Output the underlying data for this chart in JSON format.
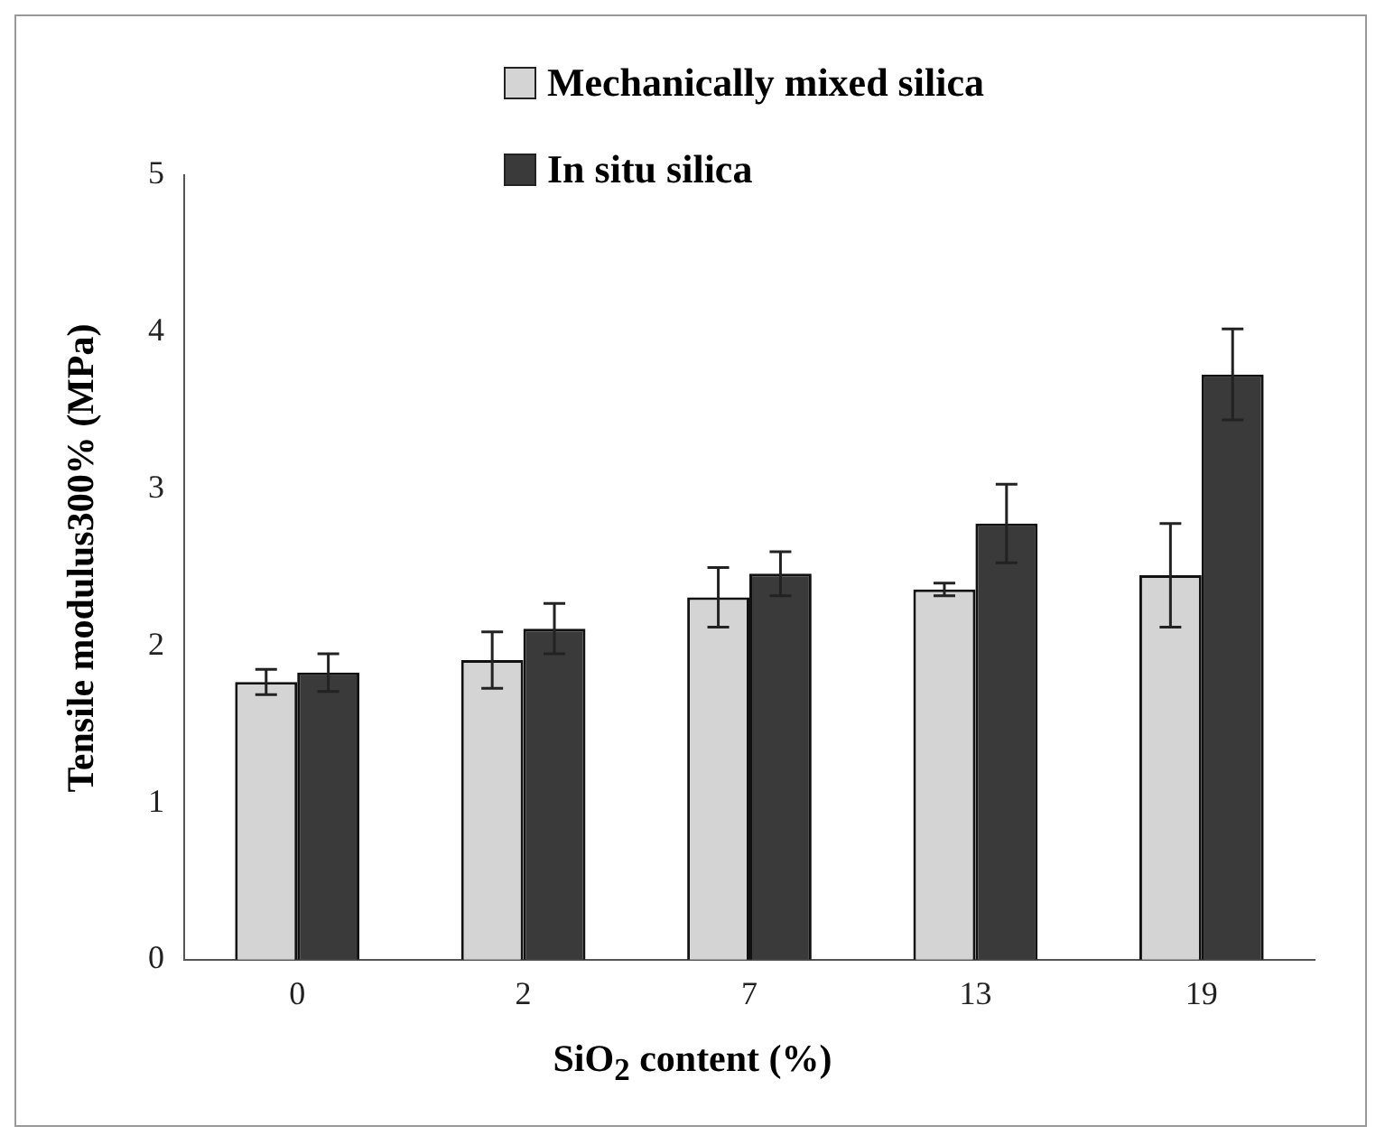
{
  "chart_data": {
    "type": "bar",
    "xlabel": "SiO$_{2}$ content (%)",
    "ylabel": "Tensile modulus300% (MPa)",
    "categories": [
      "0",
      "2",
      "7",
      "13",
      "19"
    ],
    "series": [
      {
        "name": "Mechanically mixed silica",
        "color": "#d4d4d4",
        "values": [
          1.77,
          1.91,
          2.31,
          2.36,
          2.45
        ],
        "errors": [
          0.08,
          0.18,
          0.19,
          0.04,
          0.33
        ]
      },
      {
        "name": "In situ silica",
        "color": "#3a3a3a",
        "values": [
          1.83,
          2.11,
          2.46,
          2.78,
          3.73
        ],
        "errors": [
          0.12,
          0.16,
          0.14,
          0.25,
          0.29
        ]
      }
    ],
    "ylim": [
      0,
      5
    ],
    "yticks": [
      0,
      1,
      2,
      3,
      4,
      5
    ],
    "grid": false,
    "legend": "top right"
  }
}
